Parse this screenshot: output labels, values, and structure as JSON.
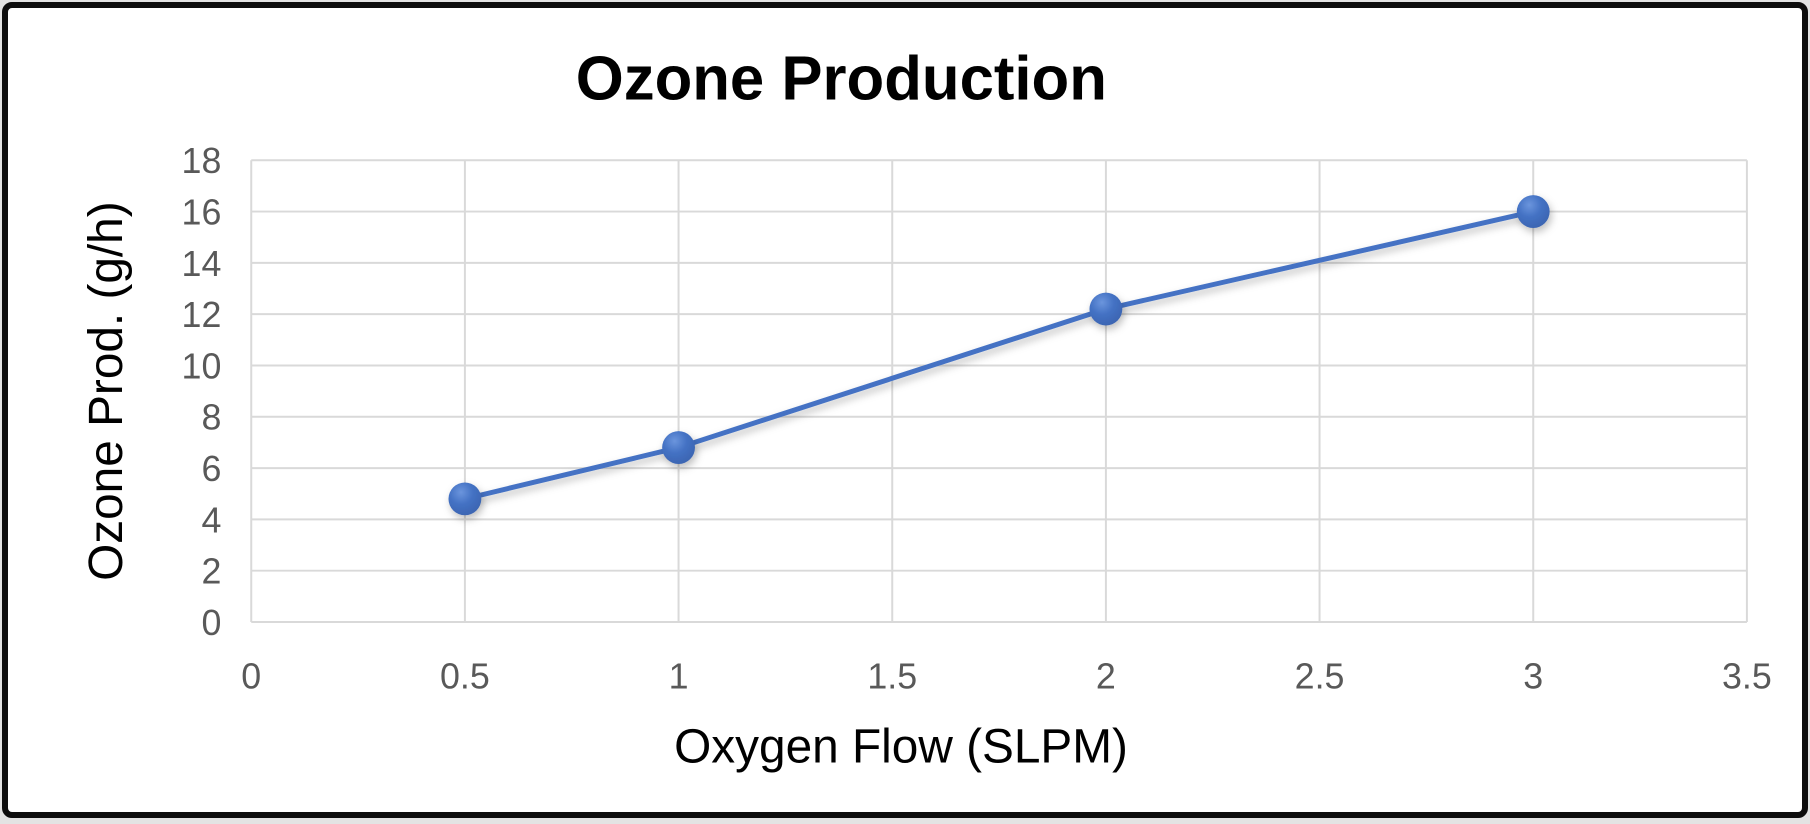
{
  "frame": {
    "background": "#ffffff",
    "border_color": "#0d0d0d",
    "outer_background": "#e3e3e3"
  },
  "chart_data": {
    "type": "line",
    "title": "Ozone Production",
    "xlabel": "Oxygen Flow (SLPM)",
    "ylabel": "Ozone Prod. (g/h)",
    "x": [
      0.5,
      1,
      2,
      3
    ],
    "y": [
      4.8,
      6.8,
      12.2,
      16.0
    ],
    "xlim": [
      0,
      3.5
    ],
    "ylim": [
      0,
      18
    ],
    "xticks": [
      0,
      0.5,
      1,
      1.5,
      2,
      2.5,
      3,
      3.5
    ],
    "xtick_labels": [
      "0",
      "0.5",
      "1",
      "1.5",
      "2",
      "2.5",
      "3",
      "3.5"
    ],
    "yticks": [
      0,
      2,
      4,
      6,
      8,
      10,
      12,
      14,
      16,
      18
    ],
    "ytick_labels": [
      "0",
      "2",
      "4",
      "6",
      "8",
      "10",
      "12",
      "14",
      "16",
      "18"
    ],
    "grid": true,
    "legend": false,
    "line_color": "#4472C4",
    "marker_color": "#4472C4",
    "marker_highlight": "#6b95dd",
    "marker_shade": "#3a62ae",
    "gridline_color": "#D9D9D9",
    "tick_color": "#595959",
    "title_color": "#000000"
  }
}
